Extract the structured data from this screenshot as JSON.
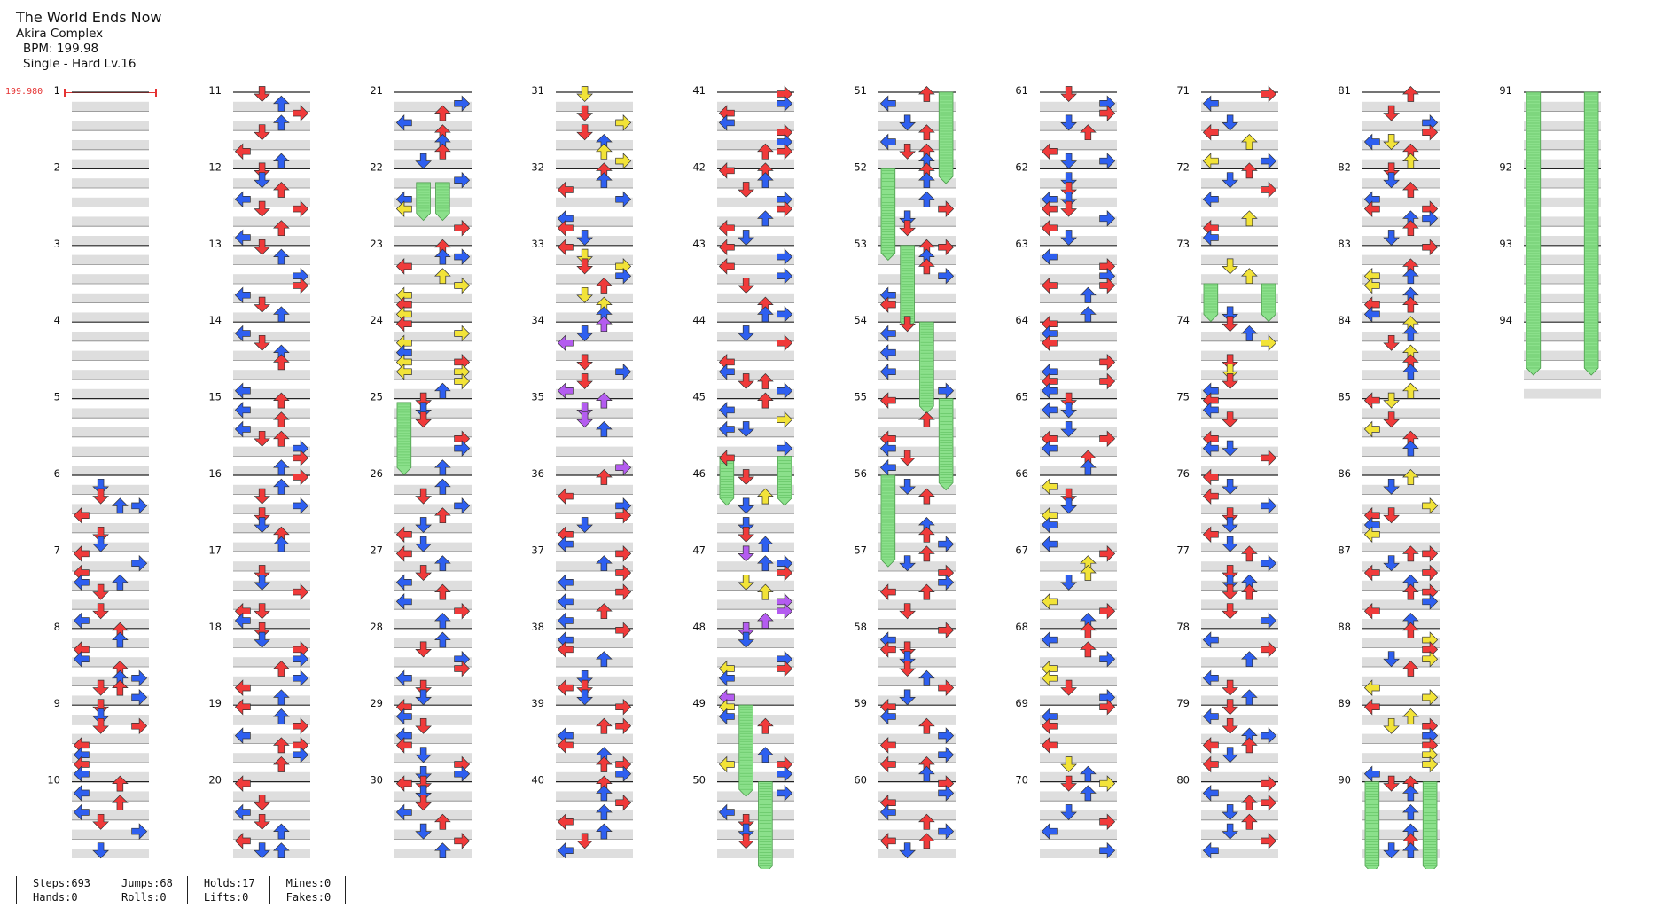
{
  "header": {
    "title": "The World Ends Now",
    "artist": "Akira Complex",
    "bpm": "BPM: 199.98",
    "difficulty": "Single - Hard  Lv.16"
  },
  "bpm_marker": "199.980",
  "stats": [
    {
      "top": "Steps:693",
      "bottom": "Hands:0"
    },
    {
      "top": "Jumps:68",
      "bottom": "Rolls:0"
    },
    {
      "top": "Holds:17",
      "bottom": "Lifts:0"
    },
    {
      "top": "Mines:0",
      "bottom": "Fakes:0"
    }
  ],
  "colors": {
    "red": "#f03a3a",
    "blue": "#2e5ff0",
    "yellow": "#f2e338",
    "purple": "#b45cf0",
    "hold": "#8be08b"
  },
  "columns": 10,
  "measures_per_column": 10,
  "total_measures": 94
}
